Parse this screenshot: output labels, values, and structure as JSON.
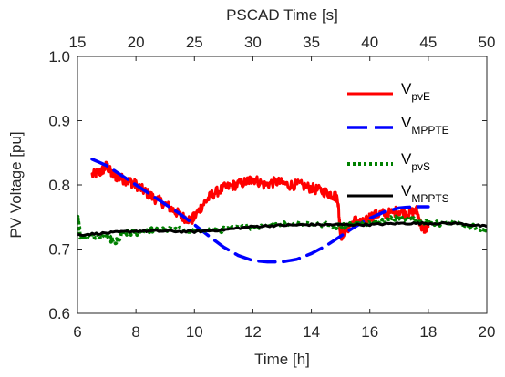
{
  "chart_data": {
    "type": "line",
    "xlabel": "Time [h]",
    "x2label": "PSCAD Time [s]",
    "ylabel": "PV Voltage [pu]",
    "xlim": [
      6,
      20
    ],
    "x2lim": [
      15,
      50
    ],
    "ylim": [
      0.6,
      1.0
    ],
    "xticks": [
      6,
      8,
      10,
      12,
      14,
      16,
      18,
      20
    ],
    "xtick_labels": [
      "6",
      "8",
      "10",
      "12",
      "14",
      "16",
      "18",
      "20"
    ],
    "x2ticks": [
      15,
      20,
      25,
      30,
      35,
      40,
      45,
      50
    ],
    "x2tick_labels": [
      "15",
      "20",
      "25",
      "30",
      "35",
      "40",
      "45",
      "50"
    ],
    "yticks": [
      0.6,
      0.7,
      0.8,
      0.9,
      1.0
    ],
    "ytick_labels": [
      "0.6",
      "0.7",
      "0.8",
      "0.9",
      "1.0"
    ],
    "grid": false,
    "legend_position": "top-right",
    "series": [
      {
        "name": "V_pvE",
        "legend_main": "V",
        "legend_sub": "pvE",
        "color": "#ff0000",
        "style": "solid",
        "noise": 0.008,
        "x": [
          6.5,
          6.8,
          7.0,
          7.2,
          7.5,
          7.8,
          8.0,
          8.3,
          8.6,
          9.0,
          9.3,
          9.6,
          9.9,
          10.0,
          10.3,
          10.6,
          11.0,
          11.4,
          11.8,
          12.0,
          12.4,
          12.8,
          13.2,
          13.6,
          14.0,
          14.4,
          14.7,
          14.9,
          15.0,
          15.2,
          15.5,
          15.8,
          16.0,
          16.3,
          16.6,
          17.0,
          17.3,
          17.6,
          17.8,
          18.0
        ],
        "y": [
          0.815,
          0.82,
          0.83,
          0.815,
          0.81,
          0.805,
          0.8,
          0.79,
          0.78,
          0.77,
          0.76,
          0.75,
          0.745,
          0.75,
          0.77,
          0.785,
          0.795,
          0.8,
          0.805,
          0.81,
          0.8,
          0.805,
          0.8,
          0.8,
          0.795,
          0.79,
          0.785,
          0.78,
          0.72,
          0.73,
          0.745,
          0.74,
          0.75,
          0.755,
          0.755,
          0.76,
          0.755,
          0.76,
          0.73,
          0.735
        ]
      },
      {
        "name": "V_MPPTE",
        "legend_main": "V",
        "legend_sub": "MPPTE",
        "color": "#0000ff",
        "style": "dashed",
        "noise": 0,
        "x": [
          6.5,
          7.0,
          7.5,
          8.0,
          8.5,
          9.0,
          9.5,
          10.0,
          10.5,
          11.0,
          11.5,
          12.0,
          12.5,
          13.0,
          13.5,
          14.0,
          14.5,
          15.0,
          15.5,
          16.0,
          16.5,
          17.0,
          17.5,
          18.0
        ],
        "y": [
          0.84,
          0.83,
          0.815,
          0.8,
          0.785,
          0.77,
          0.755,
          0.738,
          0.72,
          0.703,
          0.69,
          0.682,
          0.68,
          0.68,
          0.684,
          0.693,
          0.705,
          0.72,
          0.735,
          0.748,
          0.758,
          0.764,
          0.766,
          0.766
        ]
      },
      {
        "name": "V_pvS",
        "legend_main": "V",
        "legend_sub": "pvS",
        "color": "#008000",
        "style": "dotted",
        "noise": 0.004,
        "x": [
          6.0,
          6.1,
          6.5,
          7.0,
          7.3,
          7.6,
          8.0,
          8.5,
          9.0,
          10.0,
          11.0,
          12.0,
          13.0,
          14.0,
          15.0,
          15.5,
          16.0,
          16.5,
          17.0,
          17.5,
          18.0,
          18.5,
          19.0,
          19.5,
          20.0
        ],
        "y": [
          0.75,
          0.72,
          0.72,
          0.72,
          0.71,
          0.725,
          0.725,
          0.73,
          0.73,
          0.73,
          0.73,
          0.735,
          0.74,
          0.74,
          0.735,
          0.74,
          0.74,
          0.745,
          0.75,
          0.745,
          0.74,
          0.74,
          0.74,
          0.735,
          0.73
        ]
      },
      {
        "name": "V_MPPTS",
        "legend_main": "V",
        "legend_sub": "MPPTS",
        "color": "#000000",
        "style": "solid",
        "noise": 0.0015,
        "x": [
          6.0,
          7.0,
          8.0,
          9.0,
          10.0,
          11.0,
          12.0,
          13.0,
          14.0,
          15.0,
          16.0,
          17.0,
          18.0,
          19.0,
          20.0
        ],
        "y": [
          0.722,
          0.725,
          0.728,
          0.728,
          0.727,
          0.73,
          0.735,
          0.737,
          0.738,
          0.738,
          0.738,
          0.74,
          0.74,
          0.74,
          0.735
        ]
      }
    ]
  }
}
